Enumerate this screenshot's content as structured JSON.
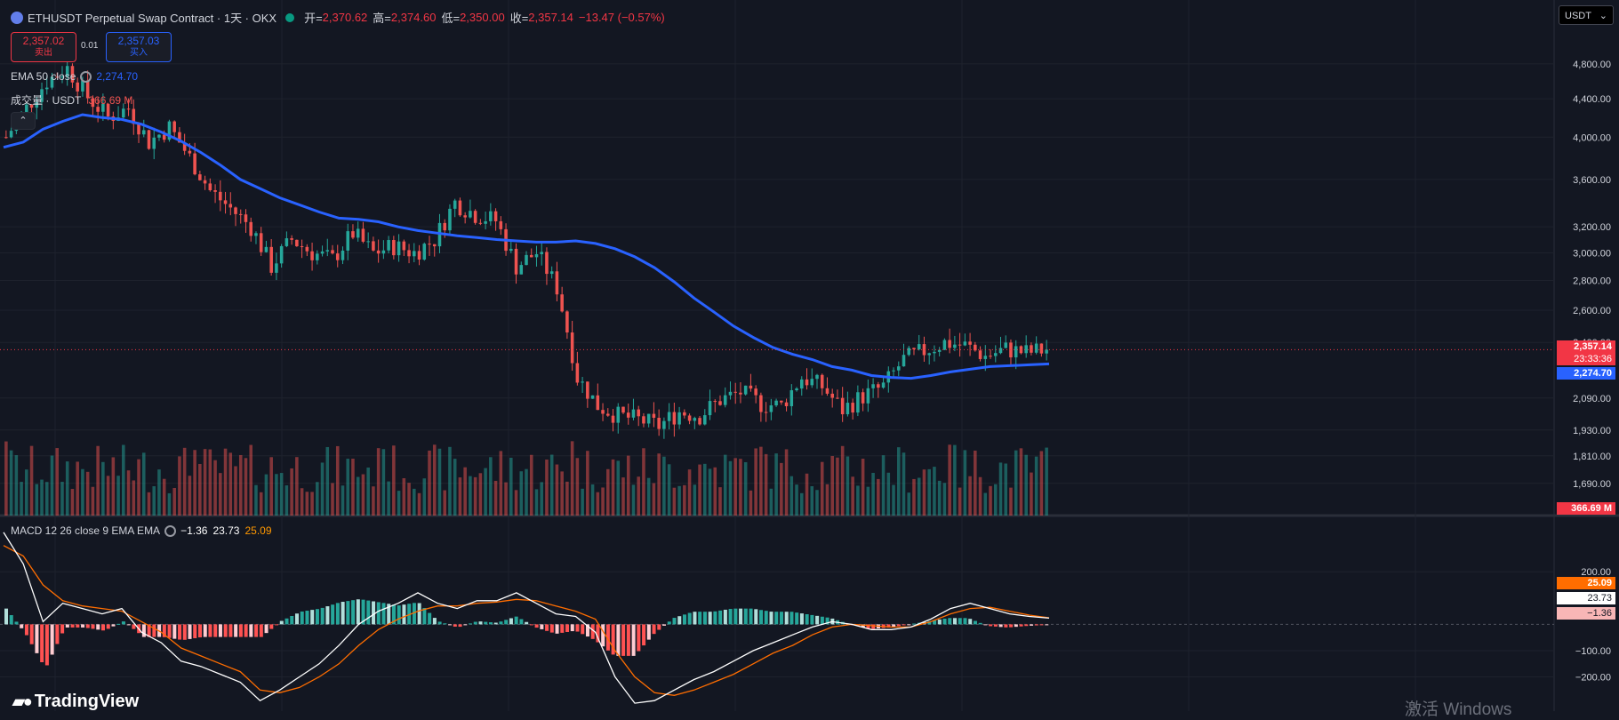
{
  "header": {
    "symbol_title": "ETHUSDT Perpetual Swap Contract · 1天 · OKX",
    "open_label": "开=",
    "open": "2,370.62",
    "high_label": "高=",
    "high": "2,374.60",
    "low_label": "低=",
    "low": "2,350.00",
    "close_label": "收=",
    "close": "2,357.14",
    "change": "−13.47 (−0.57%)"
  },
  "trade": {
    "sell_price": "2,357.02",
    "sell_label": "卖出",
    "spread": "0.01",
    "buy_price": "2,357.03",
    "buy_label": "买入"
  },
  "indicators": {
    "ema_label": "EMA 50 close",
    "ema_value": "2,274.70",
    "volume_label": "成交量 · USDT",
    "volume_value": "366.69 M",
    "macd_label": "MACD 12 26 close 9 EMA EMA",
    "macd_hist": "−1.36",
    "macd_line": "23.73",
    "macd_signal": "25.09"
  },
  "currency_button": "USDT",
  "collapse_icon": "chevron-up-icon",
  "branding": "TradingView",
  "watermark": "激活 Windows",
  "price_axis": {
    "ticks": [
      "4,800.00",
      "4,400.00",
      "4,000.00",
      "3,600.00",
      "3,200.00",
      "3,000.00",
      "2,800.00",
      "2,600.00",
      "2,400.00",
      "2,090.00",
      "1,930.00",
      "1,810.00",
      "1,690.00"
    ],
    "last_price_tag": "2,357.14",
    "countdown_tag": "23:33:36",
    "ema_tag": "2,274.70",
    "volume_tag": "366.69 M"
  },
  "macd_axis": {
    "ticks": [
      "200.00",
      "−100.00",
      "−200.00"
    ],
    "signal_tag": "25.09",
    "macd_tag": "23.73",
    "hist_tag": "−1.36"
  },
  "colors": {
    "up": "#26a69a",
    "down": "#ef5350",
    "ema": "#2962ff",
    "macd": "#ffffff",
    "signal": "#ff6d00",
    "background": "#131722"
  },
  "chart_data": {
    "type": "candlestick",
    "symbol": "ETHUSDT",
    "interval": "1天",
    "y_scale": "log",
    "price_ticks": [
      4800,
      4400,
      4000,
      3600,
      3200,
      3000,
      2800,
      2600,
      2400,
      2090,
      1930,
      1810,
      1690
    ],
    "last_close": 2357.14,
    "ema50_last": 2274.7,
    "volume_last_musdt": 366.69,
    "ema50_path": [
      3900,
      3950,
      4080,
      4160,
      4230,
      4200,
      4180,
      4130,
      4050,
      3960,
      3850,
      3730,
      3600,
      3520,
      3440,
      3380,
      3320,
      3270,
      3260,
      3240,
      3200,
      3170,
      3150,
      3130,
      3115,
      3100,
      3090,
      3080,
      3080,
      3090,
      3070,
      3030,
      2970,
      2890,
      2790,
      2680,
      2590,
      2500,
      2430,
      2370,
      2330,
      2300,
      2260,
      2240,
      2210,
      2200,
      2195,
      2210,
      2230,
      2245,
      2260,
      2265,
      2270,
      2275
    ],
    "price_path": [
      4000,
      4300,
      4600,
      4750,
      4420,
      4200,
      4300,
      3950,
      4100,
      3800,
      3500,
      3350,
      3200,
      2900,
      3100,
      3000,
      2950,
      3150,
      3000,
      3050,
      3000,
      3100,
      3400,
      3300,
      3250,
      2900,
      3000,
      2750,
      2200,
      2050,
      2000,
      1980,
      1950,
      2020,
      2000,
      2080,
      2120,
      2060,
      2050,
      2200,
      2150,
      2030,
      2100,
      2150,
      2300,
      2350,
      2400,
      2380,
      2320,
      2360,
      2340,
      2357
    ],
    "macd": {
      "macd_last": 23.73,
      "signal_last": 25.09,
      "histogram_last": -1.36,
      "axis_ticks": [
        200,
        -100,
        -200
      ],
      "macd_path": [
        350,
        230,
        10,
        80,
        60,
        40,
        60,
        -30,
        -70,
        -140,
        -160,
        -190,
        -220,
        -290,
        -250,
        -200,
        -150,
        -80,
        0,
        50,
        80,
        120,
        80,
        60,
        90,
        90,
        120,
        80,
        40,
        30,
        -30,
        -200,
        -300,
        -290,
        -250,
        -210,
        -180,
        -140,
        -100,
        -70,
        -40,
        -10,
        10,
        0,
        -20,
        -20,
        -10,
        20,
        60,
        80,
        60,
        40,
        30,
        23.73
      ],
      "signal_path": [
        300,
        260,
        150,
        90,
        70,
        60,
        50,
        10,
        -30,
        -90,
        -120,
        -150,
        -180,
        -250,
        -260,
        -240,
        -200,
        -150,
        -80,
        -20,
        20,
        50,
        70,
        70,
        80,
        85,
        95,
        90,
        70,
        50,
        20,
        -100,
        -200,
        -260,
        -270,
        -250,
        -220,
        -190,
        -150,
        -110,
        -80,
        -40,
        -10,
        0,
        -5,
        -10,
        -10,
        10,
        40,
        60,
        65,
        50,
        35,
        25.09
      ]
    }
  }
}
